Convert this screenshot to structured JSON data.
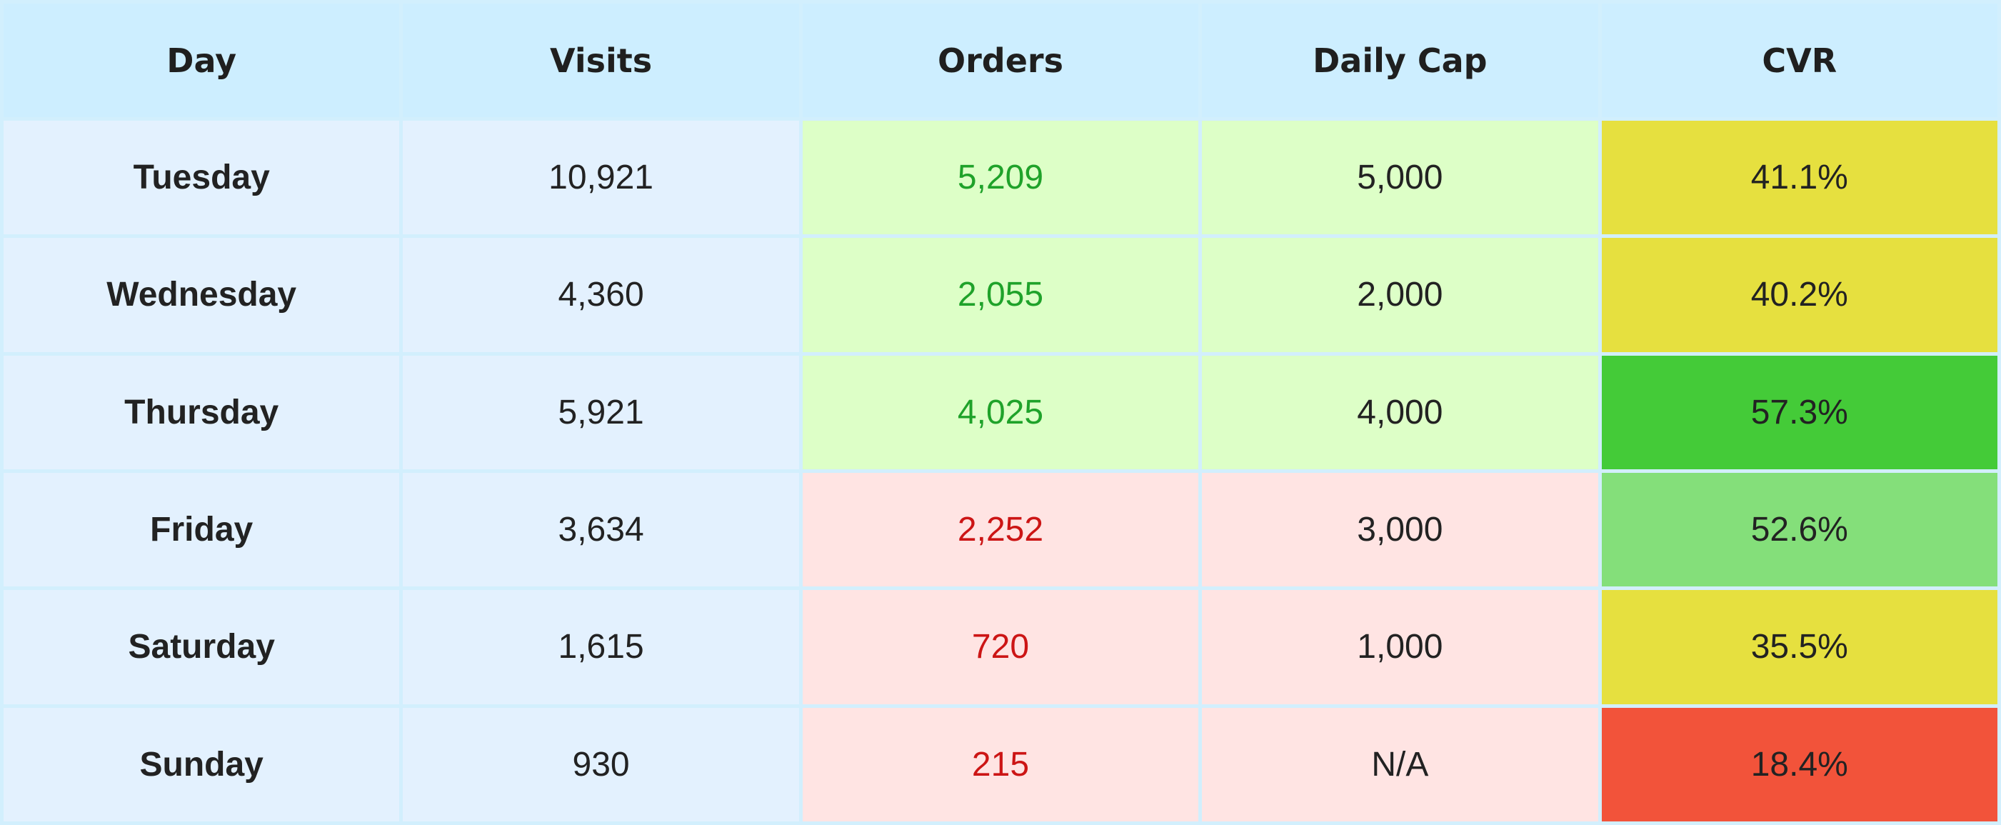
{
  "table": {
    "headers": [
      "Day",
      "Visits",
      "Orders",
      "Daily Cap",
      "CVR"
    ],
    "rows": [
      {
        "day": "Tuesday",
        "visits": "10,921",
        "orders": "5,209",
        "cap": "5,000",
        "cvr": "41.1%",
        "status": "above-cap",
        "cvr_color": "#e6e03f"
      },
      {
        "day": "Wednesday",
        "visits": "4,360",
        "orders": "2,055",
        "cap": "2,000",
        "cvr": "40.2%",
        "status": "above-cap",
        "cvr_color": "#e6e03f"
      },
      {
        "day": "Thursday",
        "visits": "5,921",
        "orders": "4,025",
        "cap": "4,000",
        "cvr": "57.3%",
        "status": "above-cap",
        "cvr_color": "#44cb38"
      },
      {
        "day": "Friday",
        "visits": "3,634",
        "orders": "2,252",
        "cap": "3,000",
        "cvr": "52.6%",
        "status": "below-cap",
        "cvr_color": "#84df7a"
      },
      {
        "day": "Saturday",
        "visits": "1,615",
        "orders": "720",
        "cap": "1,000",
        "cvr": "35.5%",
        "status": "below-cap",
        "cvr_color": "#e6e03f"
      },
      {
        "day": "Sunday",
        "visits": "930",
        "orders": "215",
        "cap": "N/A",
        "cvr": "18.4%",
        "status": "below-cap",
        "cvr_color": "#f2533a"
      }
    ]
  },
  "colors": {
    "header_bg": "#cdeeff",
    "day_visits_bg": "#e3f1fe",
    "above_cap_bg": "#ddffc7",
    "below_cap_bg": "#ffe4e3",
    "above_cap_text": "#1fa22a",
    "below_cap_text": "#cc1515",
    "grid_line": "#d2effd"
  }
}
